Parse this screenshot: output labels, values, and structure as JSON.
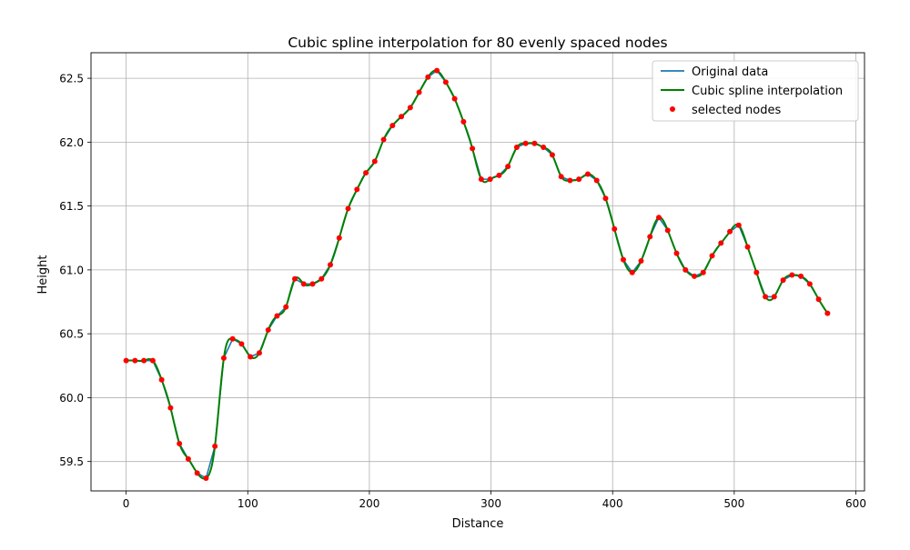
{
  "chart_data": {
    "type": "line",
    "title": "Cubic spline interpolation for 80 evenly spaced nodes",
    "xlabel": "Distance",
    "ylabel": "Height",
    "xlim": [
      -28.9,
      607.1
    ],
    "ylim": [
      59.27,
      62.7
    ],
    "xticks": [
      0,
      100,
      200,
      300,
      400,
      500,
      600
    ],
    "xtick_labels": [
      "0",
      "100",
      "200",
      "300",
      "400",
      "500",
      "600"
    ],
    "yticks": [
      59.5,
      60.0,
      60.5,
      61.0,
      61.5,
      62.0,
      62.5
    ],
    "ytick_labels": [
      "59.5",
      "60.0",
      "60.5",
      "61.0",
      "61.5",
      "62.0",
      "62.5"
    ],
    "grid": true,
    "legend_position": "top-right",
    "legend": [
      "Original data",
      "Cubic spline interpolation",
      "selected nodes"
    ],
    "colors": {
      "original": "#1f77b4",
      "spline": "#008000",
      "nodes": "#ff0000"
    },
    "nodes": {
      "x": [
        0,
        7.3,
        14.6,
        21.9,
        29.2,
        36.5,
        43.8,
        51.1,
        58.4,
        65.7,
        73.0,
        80.3,
        87.6,
        94.9,
        102.2,
        109.5,
        116.8,
        124.1,
        131.4,
        138.7,
        146.0,
        153.3,
        160.6,
        167.9,
        175.2,
        182.5,
        189.8,
        197.1,
        204.4,
        211.7,
        219.0,
        226.3,
        233.6,
        240.9,
        248.2,
        255.5,
        262.8,
        270.1,
        277.4,
        284.7,
        292.0,
        299.3,
        306.6,
        313.9,
        321.2,
        328.5,
        335.8,
        343.1,
        350.4,
        357.7,
        365.0,
        372.3,
        379.6,
        386.9,
        394.2,
        401.5,
        408.8,
        416.1,
        423.4,
        430.7,
        438.0,
        445.3,
        452.6,
        459.9,
        467.2,
        474.5,
        481.8,
        489.1,
        496.4,
        503.7,
        511.0,
        518.3,
        525.6,
        532.9,
        540.2,
        547.5,
        554.8,
        562.1,
        569.4,
        576.7
      ],
      "y": [
        60.29,
        60.29,
        60.29,
        60.29,
        60.14,
        59.92,
        59.64,
        59.52,
        59.41,
        59.37,
        59.62,
        60.31,
        60.46,
        60.42,
        60.32,
        60.35,
        60.53,
        60.64,
        60.71,
        60.93,
        60.89,
        60.89,
        60.93,
        61.04,
        61.25,
        61.48,
        61.63,
        61.76,
        61.85,
        62.02,
        62.13,
        62.2,
        62.27,
        62.39,
        62.51,
        62.56,
        62.47,
        62.34,
        62.16,
        61.95,
        61.71,
        61.71,
        61.74,
        61.81,
        61.96,
        61.99,
        61.99,
        61.96,
        61.9,
        61.73,
        61.7,
        61.71,
        61.75,
        61.7,
        61.56,
        61.32,
        61.08,
        60.98,
        61.07,
        61.26,
        61.41,
        61.31,
        61.13,
        61.0,
        60.95,
        60.98,
        61.11,
        61.21,
        61.3,
        61.35,
        61.18,
        60.98,
        60.79,
        60.79,
        60.92,
        60.96,
        60.95,
        60.89,
        60.77,
        60.66
      ]
    }
  }
}
